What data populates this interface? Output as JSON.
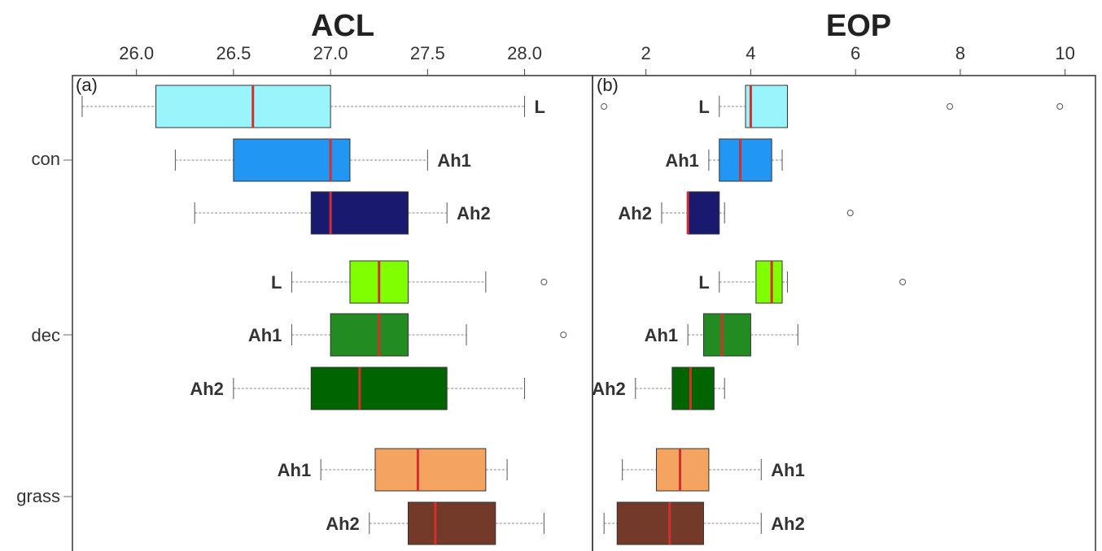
{
  "chart_data": [
    {
      "type": "boxplot",
      "panel": "(a)",
      "title": "ACL",
      "xticks": [
        "26.0",
        "26.5",
        "27.0",
        "27.5",
        "28.0"
      ],
      "xlim": [
        25.67,
        28.35
      ],
      "groups": [
        "con",
        "dec",
        "grass"
      ],
      "boxes": [
        {
          "group": "con",
          "horizon": "L",
          "color": "#99f5fb",
          "whisker_low": 25.72,
          "q1": 26.1,
          "median": 26.6,
          "q3": 27.0,
          "whisker_high": 28.0,
          "outliers": []
        },
        {
          "group": "con",
          "horizon": "Ah1",
          "color": "#2196f3",
          "whisker_low": 26.2,
          "q1": 26.5,
          "median": 27.0,
          "q3": 27.1,
          "whisker_high": 27.5,
          "outliers": []
        },
        {
          "group": "con",
          "horizon": "Ah2",
          "color": "#191970",
          "whisker_low": 26.3,
          "q1": 26.9,
          "median": 27.0,
          "q3": 27.4,
          "whisker_high": 27.6,
          "outliers": []
        },
        {
          "group": "dec",
          "horizon": "L",
          "color": "#80ff00",
          "whisker_low": 26.8,
          "q1": 27.1,
          "median": 27.25,
          "q3": 27.4,
          "whisker_high": 27.8,
          "outliers": [
            28.1
          ]
        },
        {
          "group": "dec",
          "horizon": "Ah1",
          "color": "#228b22",
          "whisker_low": 26.8,
          "q1": 27.0,
          "median": 27.25,
          "q3": 27.4,
          "whisker_high": 27.7,
          "outliers": [
            28.2
          ]
        },
        {
          "group": "dec",
          "horizon": "Ah2",
          "color": "#006400",
          "whisker_low": 26.5,
          "q1": 26.9,
          "median": 27.15,
          "q3": 27.6,
          "whisker_high": 28.0,
          "outliers": []
        },
        {
          "group": "grass",
          "horizon": "Ah1",
          "color": "#f4a460",
          "whisker_low": 26.95,
          "q1": 27.23,
          "median": 27.45,
          "q3": 27.8,
          "whisker_high": 27.91,
          "outliers": []
        },
        {
          "group": "grass",
          "horizon": "Ah2",
          "color": "#733a2a",
          "whisker_low": 27.2,
          "q1": 27.4,
          "median": 27.54,
          "q3": 27.85,
          "whisker_high": 28.1,
          "outliers": []
        }
      ]
    },
    {
      "type": "boxplot",
      "panel": "(b)",
      "title": "EOP",
      "xticks": [
        "2",
        "4",
        "6",
        "8",
        "10"
      ],
      "xlim": [
        0.98,
        10.58
      ],
      "groups": [
        "con",
        "dec",
        "grass"
      ],
      "boxes": [
        {
          "group": "con",
          "horizon": "L",
          "color": "#99f5fb",
          "whisker_low": 3.4,
          "q1": 3.9,
          "median": 4.0,
          "q3": 4.7,
          "whisker_high": 4.7,
          "outliers": [
            1.2,
            7.8,
            9.9
          ]
        },
        {
          "group": "con",
          "horizon": "Ah1",
          "color": "#2196f3",
          "whisker_low": 3.2,
          "q1": 3.4,
          "median": 3.8,
          "q3": 4.4,
          "whisker_high": 4.6,
          "outliers": []
        },
        {
          "group": "con",
          "horizon": "Ah2",
          "color": "#191970",
          "whisker_low": 2.3,
          "q1": 2.8,
          "median": 2.8,
          "q3": 3.4,
          "whisker_high": 3.5,
          "outliers": [
            5.9
          ]
        },
        {
          "group": "dec",
          "horizon": "L",
          "color": "#80ff00",
          "whisker_low": 3.4,
          "q1": 4.1,
          "median": 4.4,
          "q3": 4.6,
          "whisker_high": 4.7,
          "outliers": [
            6.9
          ]
        },
        {
          "group": "dec",
          "horizon": "Ah1",
          "color": "#228b22",
          "whisker_low": 2.8,
          "q1": 3.1,
          "median": 3.45,
          "q3": 4.0,
          "whisker_high": 4.9,
          "outliers": []
        },
        {
          "group": "dec",
          "horizon": "Ah2",
          "color": "#006400",
          "whisker_low": 1.8,
          "q1": 2.5,
          "median": 2.85,
          "q3": 3.3,
          "whisker_high": 3.5,
          "outliers": []
        },
        {
          "group": "grass",
          "horizon": "Ah1",
          "color": "#f4a460",
          "whisker_low": 1.55,
          "q1": 2.2,
          "median": 2.65,
          "q3": 3.2,
          "whisker_high": 4.2,
          "outliers": []
        },
        {
          "group": "grass",
          "horizon": "Ah2",
          "color": "#733a2a",
          "whisker_low": 1.2,
          "q1": 1.45,
          "median": 2.45,
          "q3": 3.1,
          "whisker_high": 4.2,
          "outliers": []
        }
      ]
    }
  ]
}
